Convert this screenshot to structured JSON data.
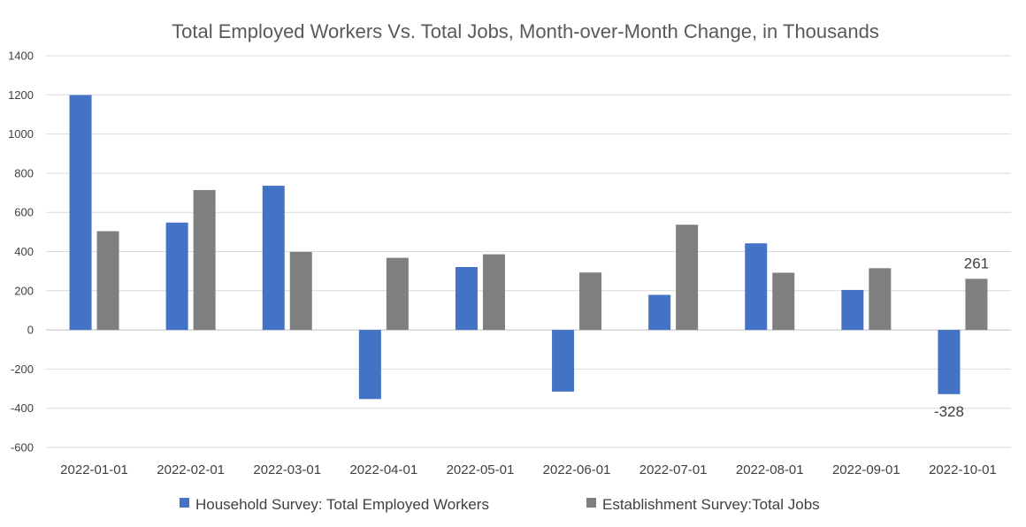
{
  "chart_data": {
    "type": "bar",
    "title": "Total Employed Workers Vs. Total Jobs, Month-over-Month Change, in Thousands",
    "xlabel": "",
    "ylabel": "",
    "ylim": [
      -600,
      1400
    ],
    "yticks": [
      -600,
      -400,
      -200,
      0,
      200,
      400,
      600,
      800,
      1000,
      1200,
      1400
    ],
    "grid": true,
    "legend_position": "bottom",
    "categories": [
      "2022-01-01",
      "2022-02-01",
      "2022-03-01",
      "2022-04-01",
      "2022-05-01",
      "2022-06-01",
      "2022-07-01",
      "2022-08-01",
      "2022-09-01",
      "2022-10-01"
    ],
    "series": [
      {
        "name": "Household Survey: Total Employed Workers",
        "color": "#4472c4",
        "values": [
          1199,
          548,
          736,
          -353,
          321,
          -315,
          179,
          442,
          204,
          -328
        ]
      },
      {
        "name": "Establishment Survey:Total Jobs",
        "color": "#7f7f7f",
        "values": [
          504,
          714,
          398,
          368,
          386,
          293,
          537,
          292,
          315,
          261
        ]
      }
    ],
    "data_labels": [
      {
        "series": 0,
        "index": 9,
        "text": "-328"
      },
      {
        "series": 1,
        "index": 9,
        "text": "261"
      }
    ]
  }
}
